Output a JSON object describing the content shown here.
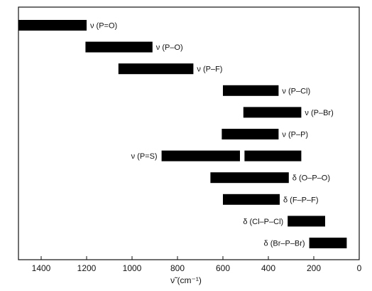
{
  "chart_data": {
    "type": "bar",
    "title": "",
    "xlabel": "ν̃ (cm⁻¹)",
    "ylabel": "",
    "xlim": [
      1500,
      0
    ],
    "x_reversed": true,
    "xticks": [
      1400,
      1200,
      1000,
      800,
      600,
      400,
      200,
      0
    ],
    "grid": false,
    "legend": "none",
    "bar_color": "#000000",
    "bands": [
      {
        "label": "ν (P=O)",
        "segments": [
          [
            1500,
            1200
          ]
        ],
        "label_side": "right"
      },
      {
        "label": "ν (P–O)",
        "segments": [
          [
            1205,
            910
          ]
        ],
        "label_side": "right"
      },
      {
        "label": "ν (P–F)",
        "segments": [
          [
            1060,
            730
          ]
        ],
        "label_side": "right"
      },
      {
        "label": "ν (P–Cl)",
        "segments": [
          [
            600,
            355
          ]
        ],
        "label_side": "right"
      },
      {
        "label": "ν (P–Br)",
        "segments": [
          [
            510,
            255
          ]
        ],
        "label_side": "right"
      },
      {
        "label": "ν (P–P)",
        "segments": [
          [
            605,
            355
          ]
        ],
        "label_side": "right"
      },
      {
        "label": "ν (P=S)",
        "segments": [
          [
            870,
            525
          ],
          [
            505,
            255
          ]
        ],
        "label_side": "left"
      },
      {
        "label": "δ (O–P–O)",
        "segments": [
          [
            655,
            310
          ]
        ],
        "label_side": "right"
      },
      {
        "label": "δ (F–P–F)",
        "segments": [
          [
            600,
            350
          ]
        ],
        "label_side": "right"
      },
      {
        "label": "δ (Cl–P–Cl)",
        "segments": [
          [
            315,
            150
          ]
        ],
        "label_side": "left"
      },
      {
        "label": "δ (Br–P–Br)",
        "segments": [
          [
            220,
            55
          ]
        ],
        "label_side": "left"
      }
    ]
  }
}
